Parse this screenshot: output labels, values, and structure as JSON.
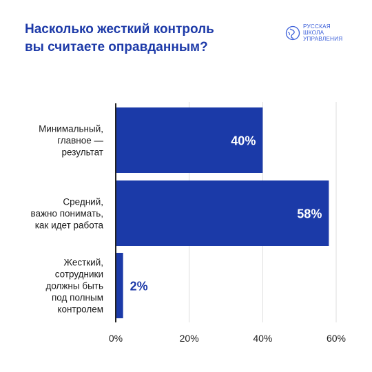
{
  "title_line1": "Насколько жесткий контроль",
  "title_line2": "вы считаете оправданным?",
  "logo": {
    "line1": "РУССКАЯ",
    "line2": "ШКОЛА",
    "line3": "УПРАВЛЕНИЯ",
    "icon": "globe-logo-icon"
  },
  "colors": {
    "bar": "#1b3aa8",
    "accent_text": "#1d3aa8",
    "grid": "#dddddd",
    "text": "#1a1a1a"
  },
  "chart_data": {
    "type": "bar",
    "orientation": "horizontal",
    "title": "Насколько жесткий контроль вы считаете оправданным?",
    "categories": [
      [
        "Минимальный,",
        "главное —",
        "результат"
      ],
      [
        "Средний,",
        "важно понимать,",
        "как идет работа"
      ],
      [
        "Жесткий,",
        "сотрудники",
        "должны быть",
        "под полным",
        "контролем"
      ]
    ],
    "values": [
      40,
      58,
      2
    ],
    "value_labels": [
      "40%",
      "58%",
      "2%"
    ],
    "xlim": [
      0,
      60
    ],
    "xticks": [
      0,
      20,
      40,
      60
    ],
    "xtick_labels": [
      "0%",
      "20%",
      "40%",
      "60%"
    ],
    "grid": "vertical",
    "xlabel": "",
    "ylabel": ""
  }
}
